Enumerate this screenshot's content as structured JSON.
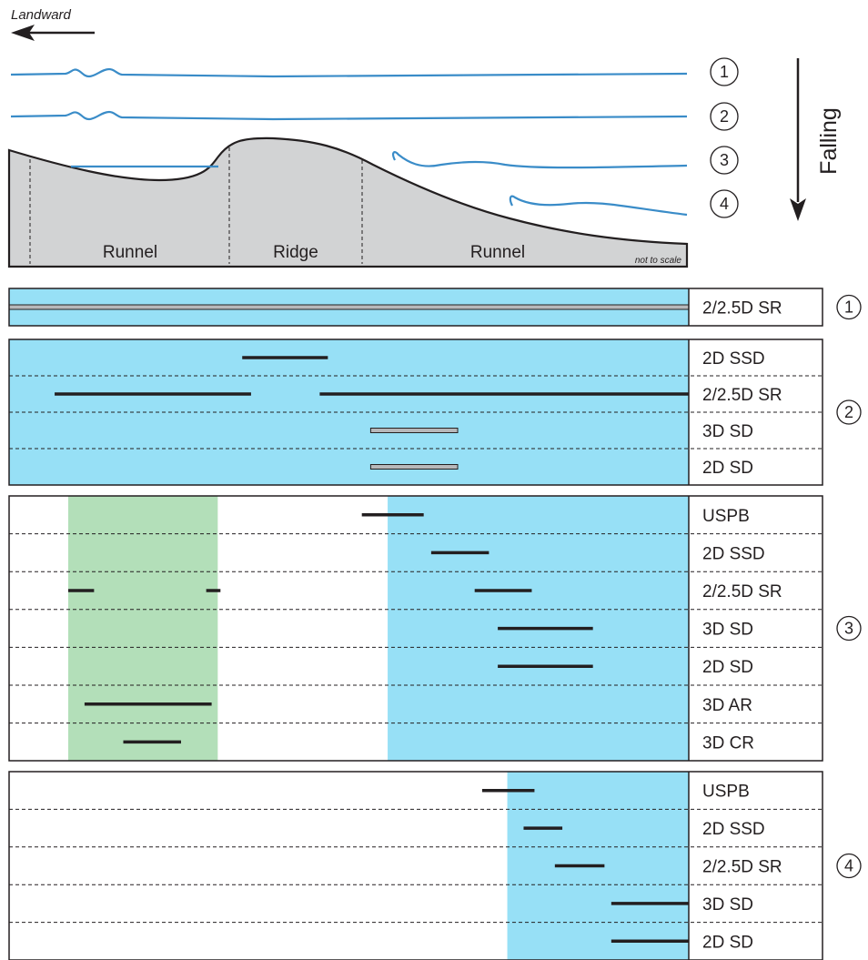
{
  "top": {
    "direction_label": "Landward",
    "falling_label": "Falling",
    "zones": [
      "Runnel",
      "Ridge",
      "Runnel"
    ],
    "scale_note": "not to scale",
    "stage_markers": [
      "1",
      "2",
      "3",
      "4"
    ]
  },
  "colors": {
    "water": "#97e0f6",
    "green": "#b3dfb9",
    "line": "#231f20",
    "water_line": "#3a8cc8",
    "profile": "#d2d3d4"
  },
  "panels": [
    {
      "marker": "1",
      "rows": [
        "2/2.5D SR"
      ],
      "segments": [
        {
          "row": 0,
          "from": 0.0,
          "to": 1.0,
          "style": "double"
        }
      ]
    },
    {
      "marker": "2",
      "rows": [
        "2D SSD",
        "2/2.5D SR",
        "3D SD",
        "2D SD"
      ],
      "segments": [
        {
          "row": 0,
          "from": 0.343,
          "to": 0.469,
          "style": "solid"
        },
        {
          "row": 1,
          "from": 0.067,
          "to": 0.356,
          "style": "solid"
        },
        {
          "row": 1,
          "from": 0.457,
          "to": 1.0,
          "style": "solid"
        },
        {
          "row": 2,
          "from": 0.532,
          "to": 0.66,
          "style": "double"
        },
        {
          "row": 3,
          "from": 0.532,
          "to": 0.66,
          "style": "double"
        }
      ]
    },
    {
      "marker": "3",
      "rows": [
        "USPB",
        "2D SSD",
        "2/2.5D SR",
        "3D SD",
        "2D SD",
        "3D AR",
        "3D CR"
      ],
      "segments": [
        {
          "row": 0,
          "from": 0.519,
          "to": 0.61,
          "style": "solid"
        },
        {
          "row": 1,
          "from": 0.621,
          "to": 0.706,
          "style": "solid"
        },
        {
          "row": 2,
          "from": 0.087,
          "to": 0.125,
          "style": "solid"
        },
        {
          "row": 2,
          "from": 0.29,
          "to": 0.311,
          "style": "solid"
        },
        {
          "row": 2,
          "from": 0.685,
          "to": 0.769,
          "style": "solid"
        },
        {
          "row": 3,
          "from": 0.719,
          "to": 0.859,
          "style": "solid"
        },
        {
          "row": 4,
          "from": 0.719,
          "to": 0.859,
          "style": "solid"
        },
        {
          "row": 5,
          "from": 0.111,
          "to": 0.298,
          "style": "solid"
        },
        {
          "row": 6,
          "from": 0.168,
          "to": 0.253,
          "style": "solid"
        }
      ]
    },
    {
      "marker": "4",
      "rows": [
        "USPB",
        "2D SSD",
        "2/2.5D SR",
        "3D SD",
        "2D SD"
      ],
      "segments": [
        {
          "row": 0,
          "from": 0.696,
          "to": 0.773,
          "style": "solid"
        },
        {
          "row": 1,
          "from": 0.757,
          "to": 0.814,
          "style": "solid"
        },
        {
          "row": 2,
          "from": 0.803,
          "to": 0.876,
          "style": "solid"
        },
        {
          "row": 3,
          "from": 0.886,
          "to": 1.0,
          "style": "solid"
        },
        {
          "row": 4,
          "from": 0.886,
          "to": 1.0,
          "style": "solid"
        }
      ]
    }
  ]
}
